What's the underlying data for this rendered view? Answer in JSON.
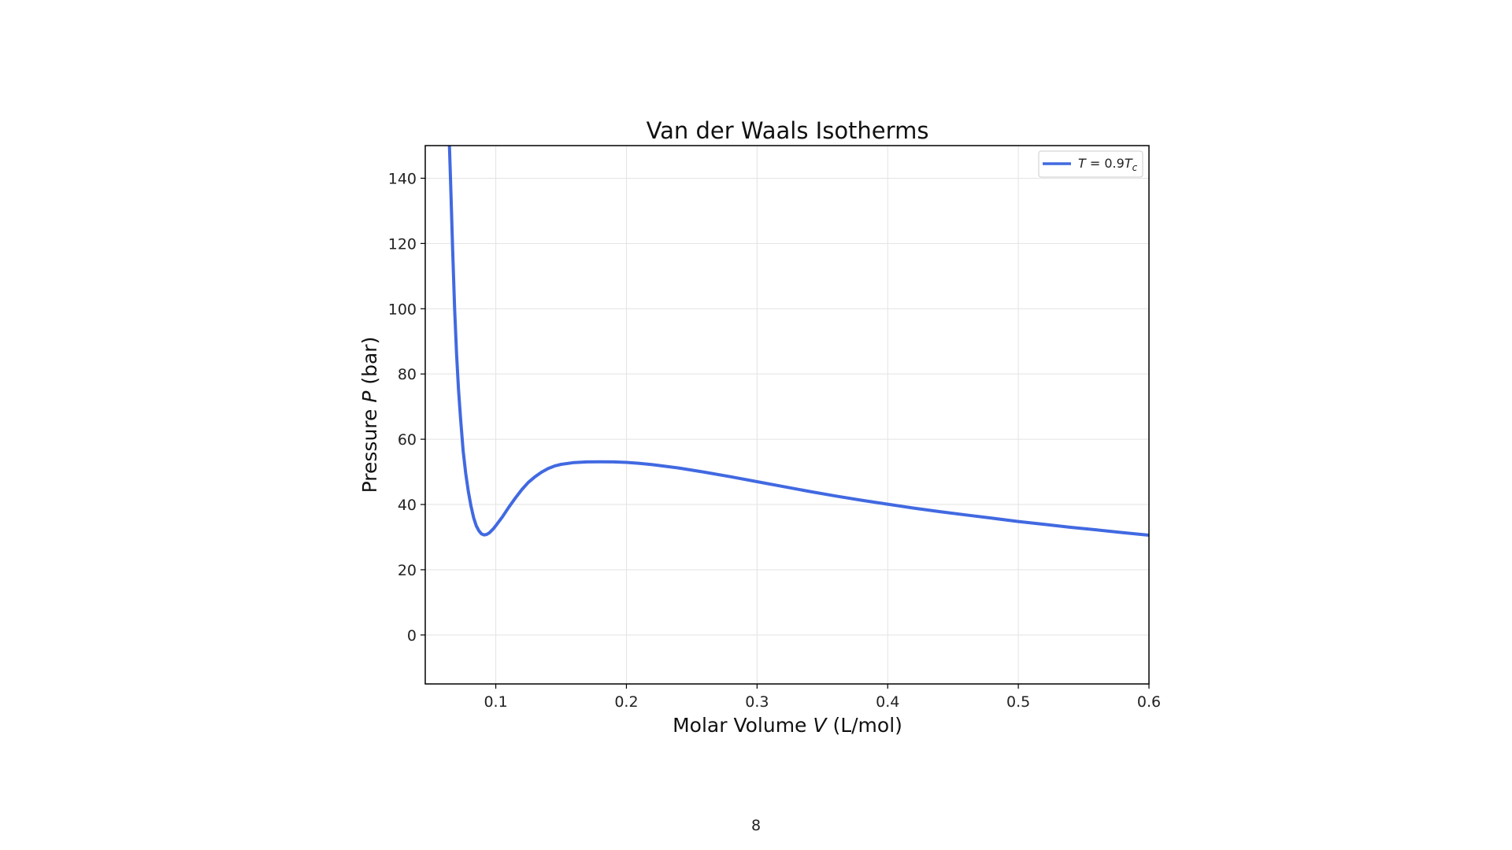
{
  "page": {
    "number": "8"
  },
  "chart_data": {
    "type": "line",
    "title": "Van der Waals Isotherms",
    "xlabel": "Molar Volume V (L/mol)",
    "xlabel_parts": {
      "before": "Molar Volume ",
      "var": "V",
      "after": " (L/mol)"
    },
    "ylabel": "Pressure P (bar)",
    "ylabel_parts": {
      "before": "Pressure ",
      "var": "P",
      "after": " (bar)"
    },
    "xlim": [
      0.046,
      0.6
    ],
    "ylim": [
      -15,
      150
    ],
    "xticks": [
      0.1,
      0.2,
      0.3,
      0.4,
      0.5,
      0.6
    ],
    "xtick_labels": [
      "0.1",
      "0.2",
      "0.3",
      "0.4",
      "0.5",
      "0.6"
    ],
    "yticks": [
      0,
      20,
      40,
      60,
      80,
      100,
      120,
      140
    ],
    "ytick_labels": [
      "0",
      "20",
      "40",
      "60",
      "80",
      "100",
      "120",
      "140"
    ],
    "grid": true,
    "legend_position": "top-right",
    "series": [
      {
        "name": "T = 0.9T_c",
        "legend_parts": {
          "v1": "T",
          "eq": " = 0.9",
          "v2": "T",
          "sub": "c"
        },
        "color": "#4169e1",
        "x": [
          0.0645,
          0.0655,
          0.067,
          0.0685,
          0.07,
          0.0715,
          0.073,
          0.075,
          0.077,
          0.079,
          0.081,
          0.083,
          0.085,
          0.087,
          0.089,
          0.091,
          0.093,
          0.095,
          0.098,
          0.1,
          0.105,
          0.11,
          0.115,
          0.12,
          0.125,
          0.13,
          0.135,
          0.14,
          0.145,
          0.15,
          0.16,
          0.17,
          0.18,
          0.19,
          0.2,
          0.21,
          0.22,
          0.24,
          0.26,
          0.28,
          0.3,
          0.32,
          0.34,
          0.36,
          0.38,
          0.4,
          0.42,
          0.44,
          0.46,
          0.48,
          0.5,
          0.52,
          0.54,
          0.56,
          0.58,
          0.6
        ],
        "y": [
          150,
          138,
          118,
          100,
          86,
          75,
          66.5,
          56.5,
          49.5,
          44,
          39.5,
          36,
          33.5,
          32,
          31,
          30.7,
          30.8,
          31.3,
          32.5,
          33.5,
          36.2,
          39.2,
          42,
          44.6,
          46.8,
          48.5,
          49.9,
          51,
          51.8,
          52.3,
          52.85,
          53.05,
          53.1,
          53.05,
          52.9,
          52.6,
          52.2,
          51.2,
          49.9,
          48.5,
          47,
          45.5,
          44,
          42.6,
          41.3,
          40.1,
          38.9,
          37.8,
          36.8,
          35.8,
          34.8,
          33.9,
          33,
          32.2,
          31.4,
          30.6
        ]
      }
    ]
  }
}
